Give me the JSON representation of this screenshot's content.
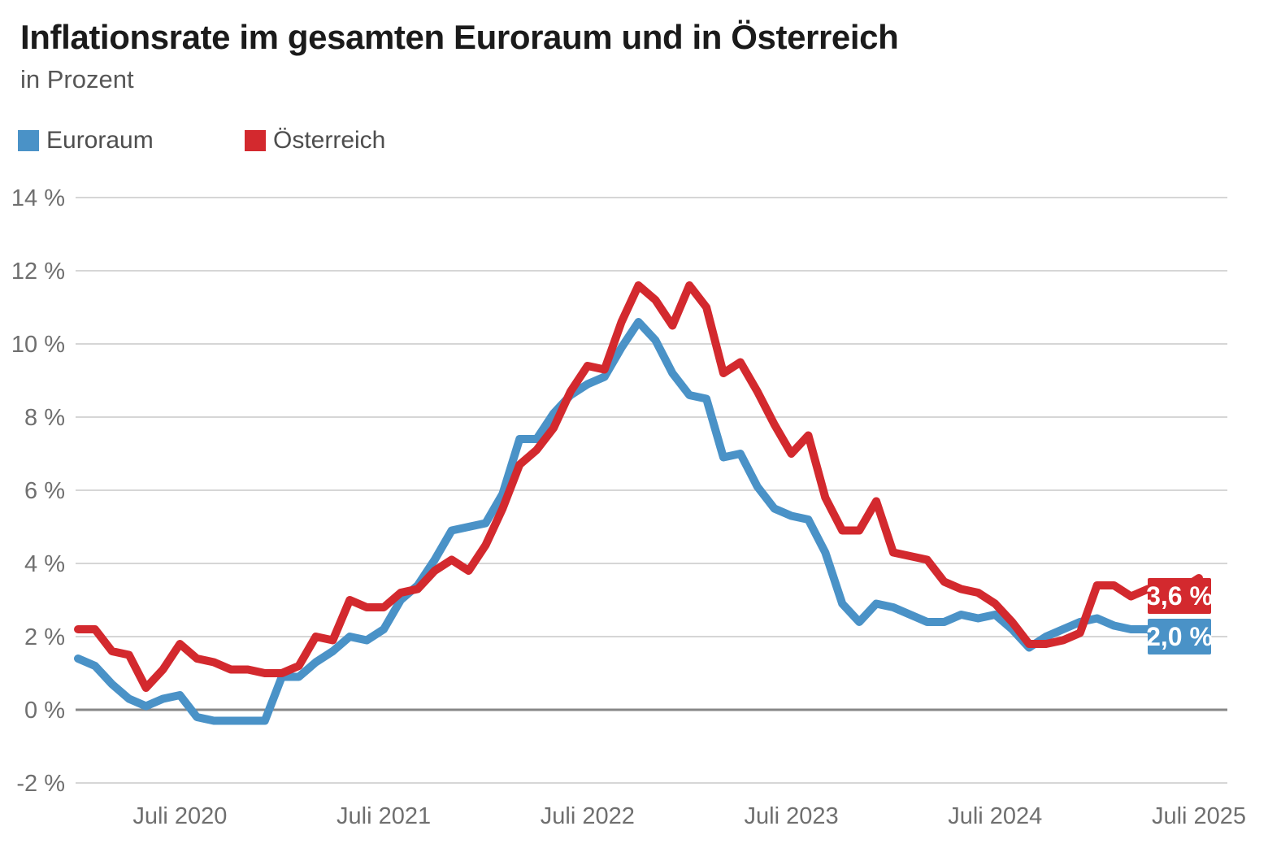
{
  "header": {
    "title": "Inflationsrate im gesamten Euroraum und in Österreich",
    "subtitle": "in Prozent"
  },
  "legend": {
    "items": [
      {
        "label": "Euroraum",
        "color": "#4a92c7"
      },
      {
        "label": "Österreich",
        "color": "#d3292e"
      }
    ]
  },
  "chart_data": {
    "type": "line",
    "title": "Inflationsrate im gesamten Euroraum und in Österreich",
    "subtitle": "in Prozent",
    "interval": "monthly",
    "start_month": "Januar 2020",
    "end_month": "Juli 2025",
    "grid": true,
    "legend_position": "top-left",
    "ylim": [
      -2,
      14
    ],
    "baseline_value": 0,
    "colors": {
      "gridline": "#c9c9c9",
      "zero_line": "#878787",
      "tick_text": "#6f6f6f"
    },
    "y_ticks": [
      {
        "label": "14 %",
        "value": 14
      },
      {
        "label": "12 %",
        "value": 12
      },
      {
        "label": "10 %",
        "value": 10
      },
      {
        "label": "8 %",
        "value": 8
      },
      {
        "label": "6 %",
        "value": 6
      },
      {
        "label": "4 %",
        "value": 4
      },
      {
        "label": "2 %",
        "value": 2
      },
      {
        "label": "0 %",
        "value": 0
      },
      {
        "label": "-2 %",
        "value": -2
      }
    ],
    "x_ticks": [
      {
        "label": "Juli 2020",
        "month_index": 6
      },
      {
        "label": "Juli 2021",
        "month_index": 18
      },
      {
        "label": "Juli 2022",
        "month_index": 30
      },
      {
        "label": "Juli 2023",
        "month_index": 42
      },
      {
        "label": "Juli 2024",
        "month_index": 54
      },
      {
        "label": "Juli 2025",
        "month_index": 66
      }
    ],
    "series": [
      {
        "name": "Euroraum",
        "color": "#4a92c7",
        "end_label": "2,0 %",
        "values": [
          1.4,
          1.2,
          0.7,
          0.3,
          0.1,
          0.3,
          0.4,
          -0.2,
          -0.3,
          -0.3,
          -0.3,
          -0.3,
          0.9,
          0.9,
          1.3,
          1.6,
          2.0,
          1.9,
          2.2,
          3.0,
          3.4,
          4.1,
          4.9,
          5.0,
          5.1,
          5.9,
          7.4,
          7.4,
          8.1,
          8.6,
          8.9,
          9.1,
          9.9,
          10.6,
          10.1,
          9.2,
          8.6,
          8.5,
          6.9,
          7.0,
          6.1,
          5.5,
          5.3,
          5.2,
          4.3,
          2.9,
          2.4,
          2.9,
          2.8,
          2.6,
          2.4,
          2.4,
          2.6,
          2.5,
          2.6,
          2.2,
          1.7,
          2.0,
          2.2,
          2.4,
          2.5,
          2.3,
          2.2,
          2.2,
          1.9,
          2.0,
          2.0
        ]
      },
      {
        "name": "Österreich",
        "color": "#d3292e",
        "end_label": "3,6 %",
        "values": [
          2.2,
          2.2,
          1.6,
          1.5,
          0.6,
          1.1,
          1.8,
          1.4,
          1.3,
          1.1,
          1.1,
          1.0,
          1.0,
          1.2,
          2.0,
          1.9,
          3.0,
          2.8,
          2.8,
          3.2,
          3.3,
          3.8,
          4.1,
          3.8,
          4.5,
          5.5,
          6.7,
          7.1,
          7.7,
          8.7,
          9.4,
          9.3,
          10.6,
          11.6,
          11.2,
          10.5,
          11.6,
          11.0,
          9.2,
          9.5,
          8.7,
          7.8,
          7.0,
          7.5,
          5.8,
          4.9,
          4.9,
          5.7,
          4.3,
          4.2,
          4.1,
          3.5,
          3.3,
          3.2,
          2.9,
          2.4,
          1.8,
          1.8,
          1.9,
          2.1,
          3.4,
          3.4,
          3.1,
          3.3,
          3.1,
          3.3,
          3.6
        ]
      }
    ]
  }
}
